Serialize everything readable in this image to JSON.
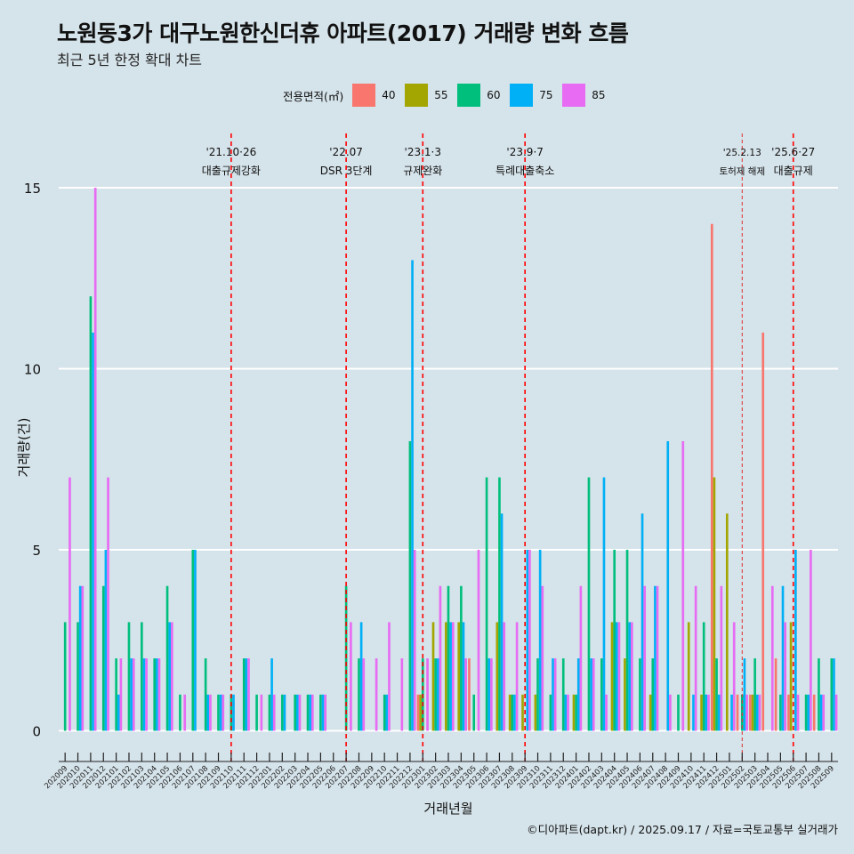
{
  "chart_data": {
    "type": "bar",
    "title": "노원동3가 대구노원한신더휴 아파트(2017) 거래량 변화 흐름",
    "subtitle": "최근 5년 한정 확대 차트",
    "xlabel": "거래년월",
    "ylabel": "거래량(건)",
    "ylim": [
      -0.7,
      16.5
    ],
    "yticks": [
      0,
      5,
      10,
      15
    ],
    "legend": {
      "title": "전용면적(㎡)",
      "position": "top",
      "entries": [
        {
          "name": "40",
          "color": "#f8766d"
        },
        {
          "name": "55",
          "color": "#a3a500"
        },
        {
          "name": "60",
          "color": "#00bf7d"
        },
        {
          "name": "75",
          "color": "#00b0f6"
        },
        {
          "name": "85",
          "color": "#e76bf3"
        }
      ]
    },
    "categories": [
      "202009",
      "202010",
      "202011",
      "202012",
      "202101",
      "202102",
      "202103",
      "202104",
      "202105",
      "202106",
      "202107",
      "202108",
      "202109",
      "202110",
      "202111",
      "202112",
      "202201",
      "202202",
      "202203",
      "202204",
      "202205",
      "202206",
      "202207",
      "202208",
      "202209",
      "202210",
      "202211",
      "202212",
      "202301",
      "202302",
      "202303",
      "202304",
      "202305",
      "202306",
      "202307",
      "202308",
      "202309",
      "202310",
      "202311",
      "202312",
      "202401",
      "202402",
      "202403",
      "202404",
      "202405",
      "202406",
      "202407",
      "202408",
      "202409",
      "202410",
      "202411",
      "202412",
      "202501",
      "202502",
      "202503",
      "202504",
      "202505",
      "202506",
      "202507",
      "202508",
      "202509"
    ],
    "series": [
      {
        "name": "40",
        "color": "#f8766d",
        "values": [
          0,
          0,
          0,
          0,
          0,
          0,
          0,
          0,
          0,
          0,
          0,
          0,
          0,
          0,
          0,
          0,
          0,
          0,
          0,
          0,
          0,
          0,
          0,
          0,
          0,
          0,
          0,
          0,
          1,
          0,
          0,
          0,
          2,
          0,
          0,
          0,
          0,
          0,
          0,
          0,
          0,
          0,
          0,
          0,
          0,
          0,
          0,
          0,
          0,
          0,
          0,
          14,
          0,
          1,
          1,
          11,
          2,
          1,
          0,
          1,
          0
        ]
      },
      {
        "name": "55",
        "color": "#a3a500",
        "values": [
          0,
          0,
          0,
          0,
          0,
          0,
          0,
          0,
          0,
          0,
          0,
          0,
          0,
          0,
          0,
          0,
          0,
          0,
          0,
          0,
          0,
          0,
          0,
          0,
          0,
          0,
          0,
          0,
          1,
          3,
          3,
          3,
          0,
          0,
          3,
          1,
          1,
          1,
          0,
          0,
          1,
          0,
          0,
          3,
          2,
          0,
          1,
          0,
          0,
          3,
          1,
          7,
          6,
          0,
          1,
          0,
          0,
          3,
          0,
          0,
          0
        ]
      },
      {
        "name": "60",
        "color": "#00bf7d",
        "values": [
          3,
          3,
          12,
          4,
          2,
          3,
          3,
          2,
          4,
          1,
          5,
          2,
          1,
          1,
          2,
          1,
          1,
          1,
          1,
          1,
          1,
          0,
          4,
          2,
          0,
          1,
          0,
          8,
          2,
          2,
          4,
          4,
          1,
          7,
          7,
          1,
          0,
          2,
          1,
          2,
          1,
          7,
          2,
          5,
          5,
          2,
          2,
          0,
          1,
          0,
          3,
          2,
          0,
          1,
          2,
          0,
          1,
          0,
          1,
          2,
          2
        ]
      },
      {
        "name": "75",
        "color": "#00b0f6",
        "values": [
          0,
          4,
          11,
          5,
          1,
          2,
          2,
          2,
          3,
          0,
          5,
          1,
          1,
          1,
          2,
          0,
          2,
          1,
          1,
          1,
          1,
          0,
          0,
          3,
          0,
          1,
          0,
          13,
          0,
          2,
          3,
          3,
          0,
          2,
          6,
          1,
          5,
          5,
          2,
          1,
          2,
          2,
          7,
          3,
          3,
          6,
          4,
          8,
          0,
          1,
          1,
          1,
          1,
          2,
          1,
          0,
          4,
          5,
          1,
          1,
          2
        ]
      },
      {
        "name": "85",
        "color": "#e76bf3",
        "values": [
          7,
          4,
          15,
          7,
          2,
          2,
          2,
          2,
          3,
          1,
          0,
          1,
          1,
          0,
          2,
          1,
          1,
          0,
          1,
          1,
          1,
          0,
          3,
          2,
          2,
          3,
          2,
          5,
          2,
          4,
          3,
          2,
          5,
          2,
          3,
          3,
          5,
          4,
          2,
          1,
          4,
          2,
          1,
          3,
          3,
          4,
          4,
          1,
          8,
          4,
          1,
          4,
          3,
          1,
          1,
          4,
          3,
          1,
          5,
          1,
          1
        ]
      }
    ],
    "events": [
      {
        "label": "'21.10·26",
        "sublabel": "대출규제강화",
        "category": "202110",
        "style": "bold"
      },
      {
        "label": "'22.07",
        "sublabel": "DSR 3단계",
        "category": "202207",
        "style": "bold"
      },
      {
        "label": "'23.1·3",
        "sublabel": "규제완화",
        "category": "202301",
        "style": "bold"
      },
      {
        "label": "'23.9·7",
        "sublabel": "특례대출축소",
        "category": "202309",
        "style": "bold"
      },
      {
        "label": "'25.2.13",
        "sublabel": "토허제 해제",
        "category": "202502",
        "style": "thin"
      },
      {
        "label": "'25.6·27",
        "sublabel": "대출규제",
        "category": "202506",
        "style": "bold"
      }
    ]
  },
  "caption": "©디아파트(dapt.kr) / 2025.09.17 / 자료=국토교통부 실거래가"
}
